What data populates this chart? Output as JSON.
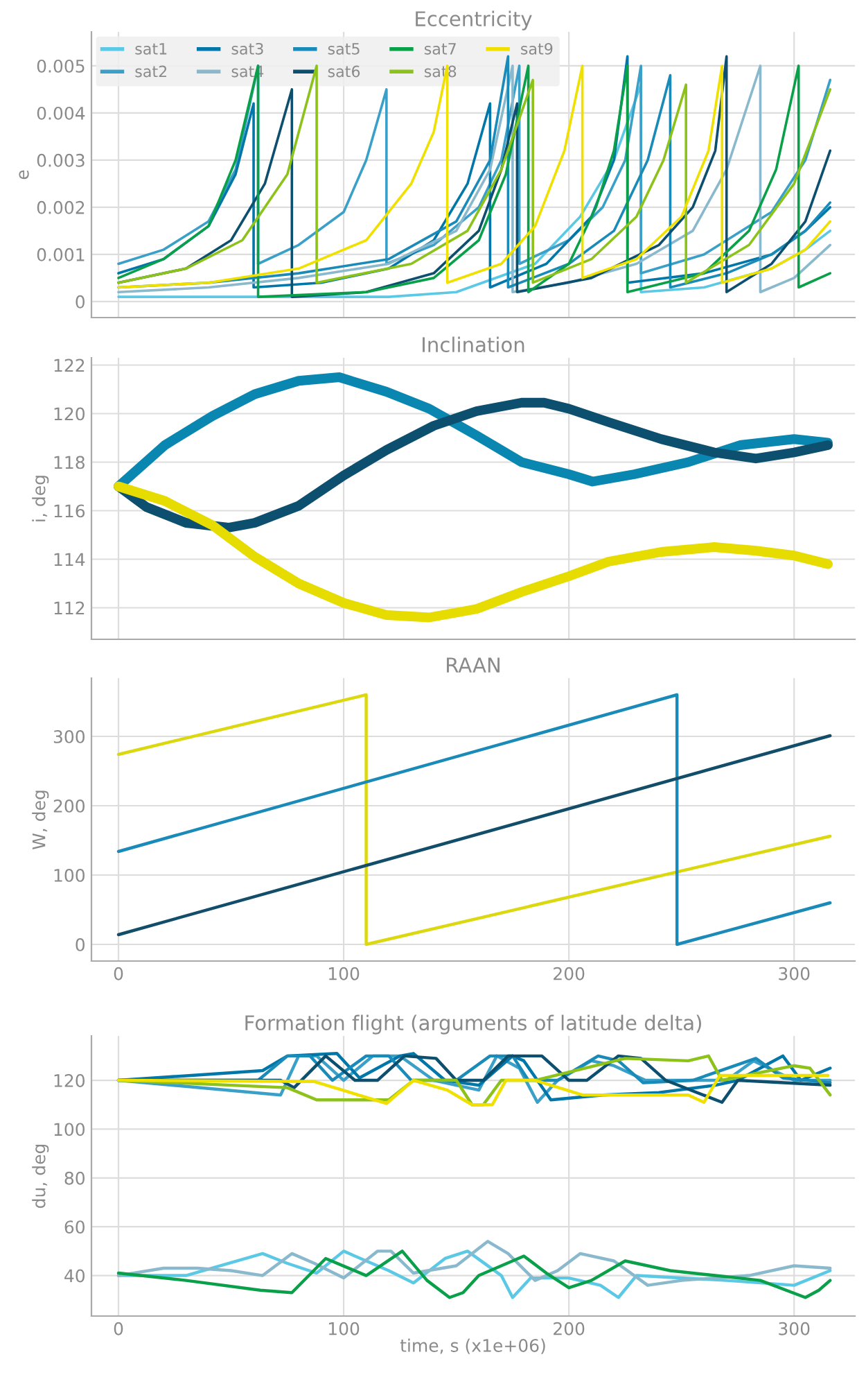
{
  "chart_data": [
    {
      "type": "line",
      "title": "Eccentricity",
      "ylabel": "e",
      "xlim": [
        -12,
        327
      ],
      "ylim": [
        -0.00034,
        0.00572
      ],
      "xticks": [
        0,
        100,
        200,
        300
      ],
      "yticks": [
        0,
        0.001,
        0.002,
        0.003,
        0.004,
        0.005
      ],
      "grid": true,
      "legend": "top left",
      "tick_labels": "y",
      "series": [
        {
          "name": "sat1",
          "color": "#5bc8e6",
          "x": [
            0,
            60,
            120,
            150,
            185,
            205,
            220,
            232,
            232,
            260,
            290,
            305,
            316
          ],
          "values": [
            0.0001,
            0.0001,
            0.0001,
            0.0002,
            0.0008,
            0.0018,
            0.003,
            0.0046,
            0.0002,
            0.0003,
            0.0007,
            0.0011,
            0.0015
          ]
        },
        {
          "name": "sat2",
          "color": "#3aa0c8",
          "x": [
            0,
            20,
            40,
            52,
            62,
            62,
            80,
            100,
            110,
            119,
            119,
            140,
            160,
            170,
            178,
            178,
            200,
            215,
            225,
            232,
            232,
            260,
            290,
            305,
            316
          ],
          "values": [
            0.0008,
            0.0011,
            0.0017,
            0.0028,
            0.005,
            0.0008,
            0.0012,
            0.0019,
            0.003,
            0.0045,
            0.0008,
            0.0012,
            0.002,
            0.003,
            0.005,
            0.0008,
            0.0013,
            0.002,
            0.003,
            0.005,
            0.0006,
            0.001,
            0.0019,
            0.003,
            0.0047
          ]
        },
        {
          "name": "sat3",
          "color": "#0077a8",
          "x": [
            0,
            20,
            40,
            52,
            60,
            60,
            90,
            120,
            140,
            155,
            165,
            165,
            190,
            210,
            220,
            226,
            226,
            260,
            290,
            305,
            316
          ],
          "values": [
            0.0006,
            0.0009,
            0.0016,
            0.0027,
            0.0042,
            0.0003,
            0.0004,
            0.0007,
            0.0013,
            0.0025,
            0.0042,
            0.0003,
            0.0008,
            0.0018,
            0.003,
            0.0052,
            0.0004,
            0.0006,
            0.001,
            0.0015,
            0.002
          ]
        },
        {
          "name": "sat4",
          "color": "#8ab8cc",
          "x": [
            0,
            40,
            80,
            120,
            150,
            165,
            175,
            175,
            200,
            230,
            255,
            270,
            285,
            285,
            300,
            316
          ],
          "values": [
            0.0002,
            0.0003,
            0.0005,
            0.0008,
            0.0015,
            0.0028,
            0.005,
            0.0002,
            0.0004,
            0.0008,
            0.0015,
            0.0028,
            0.005,
            0.0002,
            0.0005,
            0.0012
          ]
        },
        {
          "name": "sat5",
          "color": "#1a8ab8",
          "x": [
            0,
            40,
            80,
            120,
            150,
            165,
            173,
            173,
            200,
            220,
            235,
            245,
            245,
            270,
            290,
            305,
            316
          ],
          "values": [
            0.0003,
            0.0004,
            0.0006,
            0.0009,
            0.0017,
            0.003,
            0.0052,
            0.0003,
            0.0008,
            0.0015,
            0.003,
            0.0048,
            0.0003,
            0.0006,
            0.001,
            0.0015,
            0.0021
          ]
        },
        {
          "name": "sat6",
          "color": "#0d4f6e",
          "x": [
            0,
            30,
            50,
            65,
            77,
            77,
            110,
            140,
            160,
            170,
            177,
            177,
            210,
            240,
            255,
            265,
            270,
            270,
            290,
            305,
            316
          ],
          "values": [
            0.0004,
            0.0007,
            0.0013,
            0.0025,
            0.0045,
            0.0001,
            0.0002,
            0.0006,
            0.0015,
            0.0028,
            0.0042,
            0.0002,
            0.0005,
            0.0012,
            0.002,
            0.0032,
            0.0052,
            0.0002,
            0.0008,
            0.0017,
            0.0032
          ]
        },
        {
          "name": "sat7",
          "color": "#0aa04a",
          "x": [
            0,
            20,
            40,
            52,
            62,
            62,
            110,
            140,
            160,
            172,
            182,
            182,
            200,
            212,
            220,
            226,
            226,
            260,
            280,
            292,
            302,
            302,
            316
          ],
          "values": [
            0.0005,
            0.0009,
            0.0016,
            0.003,
            0.005,
            0.0001,
            0.0002,
            0.0005,
            0.0013,
            0.0027,
            0.005,
            0.0002,
            0.0008,
            0.002,
            0.0032,
            0.005,
            0.0002,
            0.0006,
            0.0015,
            0.0028,
            0.005,
            0.0003,
            0.0006
          ]
        },
        {
          "name": "sat8",
          "color": "#8cc21a",
          "x": [
            0,
            30,
            55,
            75,
            88,
            88,
            130,
            155,
            170,
            184,
            184,
            210,
            230,
            242,
            252,
            252,
            280,
            300,
            316
          ],
          "values": [
            0.0004,
            0.0007,
            0.0013,
            0.0027,
            0.005,
            0.0004,
            0.0008,
            0.0015,
            0.0028,
            0.0047,
            0.0004,
            0.0009,
            0.0018,
            0.003,
            0.0046,
            0.0004,
            0.0012,
            0.0025,
            0.0045
          ]
        },
        {
          "name": "sat9",
          "color": "#f0e000",
          "x": [
            0,
            40,
            80,
            110,
            130,
            140,
            146,
            146,
            170,
            185,
            198,
            206,
            206,
            230,
            250,
            262,
            268,
            268,
            290,
            305,
            316
          ],
          "values": [
            0.0003,
            0.0004,
            0.0007,
            0.0013,
            0.0025,
            0.0036,
            0.005,
            0.0004,
            0.0008,
            0.0016,
            0.0032,
            0.005,
            0.0005,
            0.0009,
            0.0018,
            0.0032,
            0.005,
            0.0004,
            0.0007,
            0.0011,
            0.0017
          ]
        }
      ]
    },
    {
      "type": "line",
      "title": "Inclination",
      "ylabel": "i, deg",
      "xlim": [
        -12,
        327
      ],
      "ylim": [
        110.7,
        122.3
      ],
      "xticks": [
        0,
        100,
        200,
        300
      ],
      "yticks": [
        112,
        114,
        116,
        118,
        120,
        122
      ],
      "grid": true,
      "tick_labels": "y",
      "series": [
        {
          "color": "#0a87b0",
          "x": [
            0,
            20.6,
            41.7,
            60.5,
            80,
            98,
            119,
            138,
            159,
            179,
            200,
            210.5,
            229,
            253,
            276,
            300,
            315
          ],
          "values": [
            117.0,
            118.7,
            119.9,
            120.8,
            121.35,
            121.5,
            120.9,
            120.2,
            119.1,
            118.0,
            117.5,
            117.2,
            117.5,
            118.0,
            118.7,
            118.95,
            118.8
          ]
        },
        {
          "color": "#0d4f6e",
          "x": [
            0,
            12.4,
            30,
            48.8,
            60.5,
            80,
            100,
            119,
            140,
            159,
            179,
            189,
            200,
            217.6,
            241,
            264.5,
            283,
            300,
            315
          ],
          "values": [
            117.0,
            116.15,
            115.5,
            115.3,
            115.5,
            116.2,
            117.45,
            118.5,
            119.5,
            120.1,
            120.45,
            120.45,
            120.2,
            119.65,
            118.95,
            118.4,
            118.15,
            118.4,
            118.7
          ]
        },
        {
          "color": "#e6dc00",
          "x": [
            0,
            20.6,
            41.7,
            60.5,
            80,
            100,
            119,
            138,
            159,
            179,
            200,
            217.6,
            241,
            264.5,
            283,
            300,
            315
          ],
          "values": [
            117.0,
            116.4,
            115.4,
            114.1,
            113.0,
            112.2,
            111.7,
            111.6,
            111.95,
            112.65,
            113.3,
            113.9,
            114.3,
            114.5,
            114.35,
            114.15,
            113.8
          ]
        }
      ]
    },
    {
      "type": "line",
      "title": "RAAN",
      "ylabel": "W, deg",
      "xlim": [
        -12,
        327
      ],
      "ylim": [
        -24,
        384
      ],
      "xticks": [
        0,
        100,
        200,
        300
      ],
      "yticks": [
        0,
        100,
        200,
        300
      ],
      "grid": true,
      "series": [
        {
          "color": "#dcd810",
          "x": [
            0,
            110,
            110,
            316
          ],
          "values": [
            274,
            360,
            0,
            156
          ]
        },
        {
          "color": "#1a8ab8",
          "x": [
            0,
            248,
            248,
            316
          ],
          "values": [
            134,
            360,
            0,
            60
          ]
        },
        {
          "color": "#124e6a",
          "x": [
            0,
            316
          ],
          "values": [
            14,
            301
          ]
        }
      ]
    },
    {
      "type": "line",
      "title": "Formation flight (arguments of latitude delta)",
      "xlabel": "time, s (x1e+06)",
      "ylabel": "du, deg",
      "xlim": [
        -12,
        327
      ],
      "ylim": [
        23.4,
        138.2
      ],
      "xticks": [
        0,
        100,
        200,
        300
      ],
      "yticks": [
        40,
        60,
        80,
        100,
        120
      ],
      "grid": true,
      "series": [
        {
          "color": "#5bc8e6",
          "x": [
            0,
            30,
            64,
            75,
            88,
            100,
            120,
            131,
            145,
            155,
            170,
            175,
            183,
            200,
            214,
            222,
            230,
            270,
            300,
            316
          ],
          "values": [
            40,
            40,
            49,
            45,
            41,
            50,
            42,
            37,
            47,
            50,
            40,
            31,
            39,
            39,
            36,
            31,
            40,
            38,
            36,
            42
          ]
        },
        {
          "color": "#3aa0c8",
          "x": [
            0,
            72,
            80,
            88,
            100,
            113,
            125,
            140,
            160,
            168,
            178,
            186,
            195,
            210,
            220,
            234,
            270,
            282,
            300,
            316
          ],
          "values": [
            120,
            114,
            130,
            130,
            120,
            130,
            130,
            120,
            116,
            130,
            125,
            111,
            120,
            128,
            126,
            120,
            120,
            128,
            120,
            120
          ]
        },
        {
          "color": "#0077a8",
          "x": [
            0,
            64,
            75,
            97,
            107,
            125,
            131,
            145,
            160,
            175,
            180,
            192,
            215,
            240,
            265,
            275,
            295,
            303,
            316
          ],
          "values": [
            120,
            124,
            130,
            131,
            121,
            130,
            131,
            120,
            118,
            130,
            128,
            112,
            114,
            115,
            118,
            120,
            130,
            120,
            125
          ]
        },
        {
          "color": "#8ab8cc",
          "x": [
            0,
            20,
            35,
            50,
            64,
            77,
            87,
            100,
            115,
            121,
            131,
            150,
            164,
            173,
            185,
            195,
            205,
            220,
            235,
            250,
            280,
            300,
            316
          ],
          "values": [
            40,
            43,
            43,
            42,
            40,
            49,
            45,
            39,
            50,
            50,
            41,
            44,
            54,
            49,
            38,
            42,
            49,
            46,
            36,
            38,
            40,
            44,
            43
          ]
        },
        {
          "color": "#1a8ab8",
          "x": [
            0,
            62,
            75,
            85,
            95,
            110,
            120,
            130,
            150,
            165,
            175,
            182,
            195,
            213,
            222,
            233,
            255,
            283,
            295,
            316
          ],
          "values": [
            120,
            120,
            130,
            130,
            120,
            130,
            130,
            120,
            120,
            130,
            130,
            120,
            120,
            130,
            128,
            119,
            120,
            129,
            121,
            119
          ]
        },
        {
          "color": "#0d4f6e",
          "x": [
            0,
            72,
            78,
            92,
            105,
            115,
            127,
            141,
            150,
            162,
            173,
            188,
            200,
            208,
            222,
            232,
            243,
            268,
            275,
            316
          ],
          "values": [
            120,
            120,
            117,
            130,
            120,
            120,
            130,
            129,
            120,
            120,
            130,
            130,
            120,
            120,
            130,
            129,
            120,
            111,
            120,
            118
          ]
        },
        {
          "color": "#0aa04a",
          "x": [
            0,
            30,
            63,
            77,
            92,
            110,
            126,
            137,
            147,
            153,
            160,
            180,
            190,
            200,
            210,
            225,
            245,
            265,
            285,
            305,
            311,
            316
          ],
          "values": [
            41,
            38,
            34,
            33,
            47,
            40,
            50,
            38,
            31,
            33,
            40,
            48,
            41,
            35,
            38,
            46,
            42,
            40,
            38,
            31,
            34,
            38
          ]
        },
        {
          "color": "#8cc21a",
          "x": [
            0,
            75,
            88,
            120,
            131,
            150,
            157,
            162,
            170,
            185,
            225,
            253,
            262,
            268,
            300,
            307,
            316
          ],
          "values": [
            120,
            117,
            112,
            112,
            120,
            120,
            110,
            110,
            120,
            120,
            129,
            128,
            130,
            120,
            126,
            125,
            114
          ]
        },
        {
          "color": "#f0e000",
          "x": [
            0,
            87,
            119,
            131,
            146,
            157,
            166,
            172,
            185,
            206,
            253,
            260,
            267,
            315
          ],
          "values": [
            120,
            119.5,
            110.5,
            120,
            116,
            110,
            110,
            120,
            120,
            114,
            114,
            111,
            122,
            122
          ]
        }
      ]
    }
  ]
}
